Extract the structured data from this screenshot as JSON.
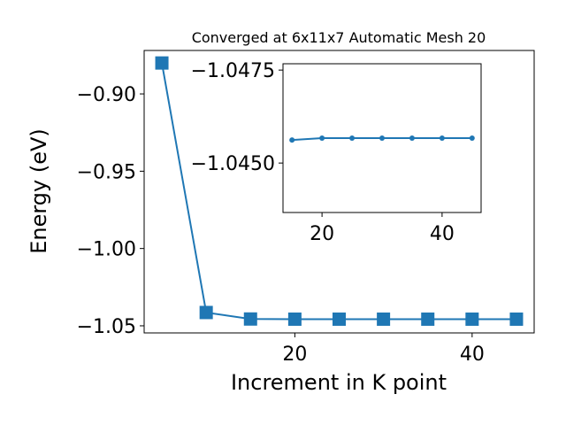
{
  "chart_data": [
    {
      "type": "line",
      "title": "Converged at 6x11x7 Automatic Mesh 20",
      "xlabel": "Increment in K point",
      "ylabel": "Energy (eV)",
      "x": [
        5,
        10,
        15,
        20,
        25,
        30,
        35,
        40,
        45
      ],
      "series": [
        {
          "color": "#1f77b4",
          "marker": "square",
          "values": [
            -0.88,
            -1.0414,
            -1.0456,
            -1.0457,
            -1.0457,
            -1.0457,
            -1.0457,
            -1.0457,
            -1.0457
          ]
        }
      ],
      "xlim": [
        3,
        47
      ],
      "ylim": [
        -1.0546,
        -0.8719
      ],
      "xticks": [
        20,
        40
      ],
      "yticks": [
        {
          "value": -0.9,
          "label": "−0.90"
        },
        {
          "value": -0.95,
          "label": "−0.95"
        },
        {
          "value": -1.0,
          "label": "−1.00"
        },
        {
          "value": -1.05,
          "label": "−1.05"
        }
      ]
    },
    {
      "type": "line",
      "x": [
        15,
        20,
        25,
        30,
        35,
        40,
        45
      ],
      "series": [
        {
          "color": "#1f77b4",
          "marker": "circle",
          "values": [
            -1.04562,
            -1.04567,
            -1.04567,
            -1.04567,
            -1.04567,
            -1.04567,
            -1.04567
          ]
        }
      ],
      "xlim": [
        13.5,
        46.5
      ],
      "ylim": [
        -1.04367,
        -1.04767
      ],
      "xticks": [
        20,
        40
      ],
      "yticks": [
        {
          "value": -1.0475,
          "label": "−1.0475"
        },
        {
          "value": -1.045,
          "label": "−1.0450"
        }
      ]
    }
  ]
}
